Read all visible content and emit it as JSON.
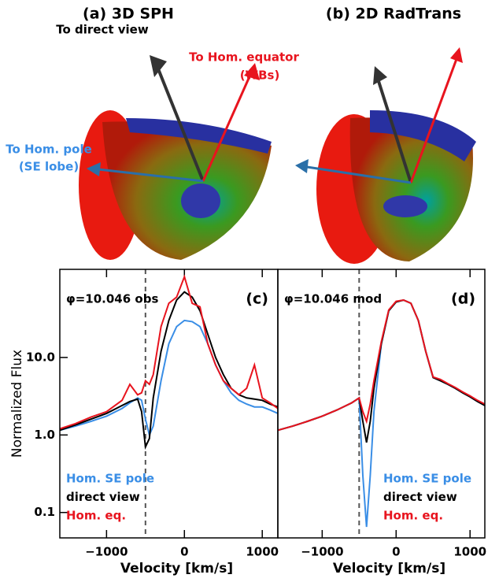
{
  "renderings": [
    {
      "title": "(a) 3D SPH",
      "labels": [
        "To direct view",
        "To Hom. equator",
        "(WBs)",
        "To Hom. pole",
        "(SE lobe)"
      ]
    },
    {
      "title": "(b) 2D RadTrans"
    }
  ],
  "chart_data": [
    {
      "type": "line",
      "panel_label": "(c)",
      "annotation": "φ=10.046 obs",
      "ylabel": "Normalized Flux",
      "xlabel": "Velocity [km/s]",
      "log_y": true,
      "xlim": [
        -1600,
        1200
      ],
      "ylim": [
        0.047,
        137
      ],
      "xticks": [
        {
          "value": -1000,
          "label": "−1000"
        },
        0,
        1000
      ],
      "yticks": [
        0.1,
        {
          "value": 1,
          "label": "1.0"
        },
        {
          "value": 10,
          "label": "10.0"
        }
      ],
      "reference_line": -500,
      "x": [
        -1600,
        -1400,
        -1200,
        -1000,
        -800,
        -700,
        -600,
        -550,
        -500,
        -450,
        -400,
        -300,
        -200,
        -100,
        0,
        100,
        200,
        300,
        400,
        500,
        600,
        700,
        800,
        900,
        1000,
        1100,
        1200
      ],
      "series": [
        {
          "name": "Hom. SE pole",
          "color": "#3a8ee6",
          "values": [
            1.15,
            1.3,
            1.5,
            1.75,
            2.2,
            2.6,
            3.0,
            2.8,
            1.6,
            1.0,
            1.3,
            5,
            15,
            25,
            30,
            29,
            25,
            15,
            8,
            5,
            3.5,
            2.8,
            2.5,
            2.3,
            2.3,
            2.1,
            1.9
          ]
        },
        {
          "name": "direct view",
          "color": "#000000",
          "values": [
            1.15,
            1.35,
            1.6,
            1.9,
            2.4,
            2.7,
            2.9,
            2.0,
            0.7,
            0.9,
            3,
            12,
            30,
            55,
            70,
            60,
            40,
            20,
            10,
            6,
            4,
            3.3,
            3,
            2.9,
            2.8,
            2.5,
            2.3
          ]
        },
        {
          "name": "Hom. eq.",
          "color": "#e8141e",
          "values": [
            1.2,
            1.4,
            1.7,
            2.0,
            2.8,
            4.5,
            3.3,
            3.5,
            5,
            4.5,
            6,
            25,
            50,
            60,
            110,
            50,
            45,
            15,
            8,
            5,
            4,
            3.3,
            4,
            8,
            3,
            2.6,
            2.2
          ]
        }
      ]
    },
    {
      "type": "line",
      "panel_label": "(d)",
      "annotation": "φ=10.046 mod",
      "xlabel": "Velocity [km/s]",
      "log_y": true,
      "xlim": [
        -1600,
        1200
      ],
      "ylim": [
        0.047,
        137
      ],
      "xticks": [
        {
          "value": -1000,
          "label": "−1000"
        },
        0,
        1000
      ],
      "reference_line": -500,
      "x": [
        -1600,
        -1400,
        -1200,
        -1000,
        -800,
        -600,
        -500,
        -450,
        -400,
        -350,
        -300,
        -200,
        -100,
        0,
        100,
        200,
        300,
        400,
        500,
        600,
        700,
        800,
        900,
        1000,
        1100,
        1200
      ],
      "series": [
        {
          "name": "Hom. SE pole",
          "color": "#3a8ee6",
          "values": [
            1.15,
            1.3,
            1.5,
            1.75,
            2.1,
            2.6,
            3.0,
            0.3,
            0.065,
            0.3,
            2,
            15,
            40,
            52,
            55,
            50,
            30,
            12,
            5.5,
            5,
            4.5,
            4,
            3.5,
            3.1,
            2.7,
            2.4
          ]
        },
        {
          "name": "direct view",
          "color": "#000000",
          "values": [
            1.15,
            1.3,
            1.5,
            1.75,
            2.1,
            2.6,
            3.0,
            1.5,
            0.8,
            1.5,
            4,
            15,
            40,
            52,
            55,
            50,
            30,
            12,
            5.5,
            5,
            4.5,
            4,
            3.5,
            3.1,
            2.7,
            2.4
          ]
        },
        {
          "name": "Hom. eq.",
          "color": "#e8141e",
          "values": [
            1.15,
            1.3,
            1.5,
            1.75,
            2.1,
            2.6,
            3.0,
            2,
            1.5,
            2.5,
            5,
            16,
            41,
            53,
            55,
            50,
            30,
            12,
            5.6,
            5.2,
            4.6,
            4.1,
            3.6,
            3.2,
            2.8,
            2.5
          ]
        }
      ]
    }
  ]
}
